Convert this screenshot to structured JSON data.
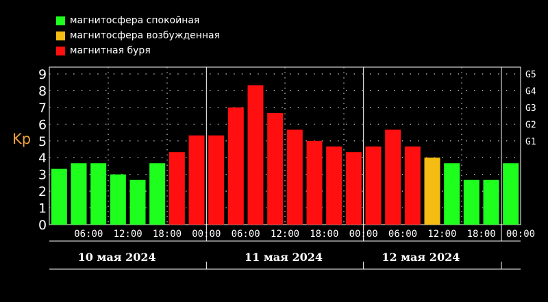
{
  "legend": [
    {
      "label": "магнитосфера спокойная",
      "color": "#1eff1e"
    },
    {
      "label": "магнитосфера возбужденная",
      "color": "#f5bd14"
    },
    {
      "label": "магнитная буря",
      "color": "#ff0f0f"
    }
  ],
  "chart_data": {
    "type": "bar",
    "ylabel": "Kp",
    "ylim": [
      0,
      9
    ],
    "yticks": [
      "0",
      "1",
      "2",
      "3",
      "4",
      "5",
      "6",
      "7",
      "8",
      "9"
    ],
    "g_scale": [
      {
        "label": "G1",
        "kp": 5
      },
      {
        "label": "G2",
        "kp": 6
      },
      {
        "label": "G3",
        "kp": 7
      },
      {
        "label": "G4",
        "kp": 8
      },
      {
        "label": "G5",
        "kp": 9
      }
    ],
    "time_labels": [
      "06:00",
      "12:00",
      "18:00",
      "00:00",
      "06:00",
      "12:00",
      "18:00",
      "00:00",
      "06:00",
      "12:00",
      "18:00",
      "00:00"
    ],
    "day_labels": [
      "10 мая 2024",
      "11 мая 2024",
      "12 мая 2024"
    ],
    "values": [
      3.33,
      3.67,
      3.67,
      3.0,
      2.67,
      3.67,
      4.33,
      5.33,
      5.33,
      7.0,
      8.33,
      6.67,
      5.67,
      5.0,
      4.67,
      4.33,
      4.67,
      5.67,
      4.67,
      4.0,
      3.67,
      2.67,
      2.67,
      3.67
    ],
    "categories": [
      "quiet",
      "quiet",
      "quiet",
      "quiet",
      "quiet",
      "quiet",
      "storm",
      "storm",
      "storm",
      "storm",
      "storm",
      "storm",
      "storm",
      "storm",
      "storm",
      "storm",
      "storm",
      "storm",
      "storm",
      "disturbed",
      "quiet",
      "quiet",
      "quiet",
      "quiet"
    ],
    "colors": {
      "quiet": "#1eff1e",
      "disturbed": "#f5bd14",
      "storm": "#ff0f0f"
    },
    "ylabel_color": "#f0a040",
    "grid": true
  }
}
